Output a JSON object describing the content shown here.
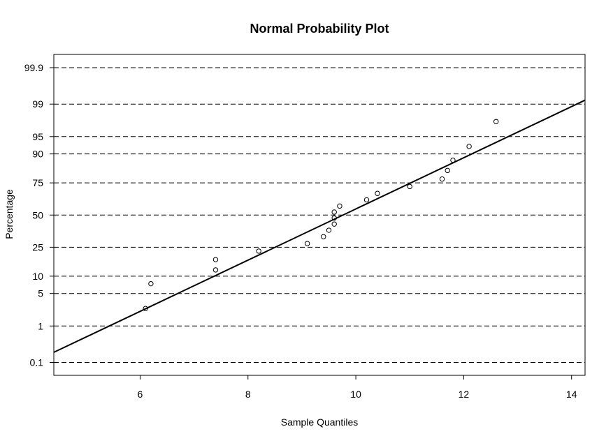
{
  "chart_data": {
    "type": "scatter",
    "title": "Normal Probability Plot",
    "xlabel": "Sample Quantiles",
    "ylabel": "Percentage",
    "xlim": [
      4.4,
      14.25
    ],
    "x_ticks": [
      6,
      8,
      10,
      12,
      14
    ],
    "y_scale": "normal-probability",
    "y_ticks": [
      0.1,
      1,
      5,
      10,
      25,
      50,
      75,
      90,
      95,
      99,
      99.9
    ],
    "y_tick_labels": [
      "0.1",
      "1",
      "5",
      "10",
      "25",
      "50",
      "75",
      "90",
      "95",
      "99",
      "99.9"
    ],
    "grid": "horizontal dashed lines at y ticks",
    "series": [
      {
        "points": [
          {
            "x": 6.1,
            "y": 2.5
          },
          {
            "x": 6.2,
            "y": 7.5
          },
          {
            "x": 7.4,
            "y": 12.5
          },
          {
            "x": 7.4,
            "y": 17.5
          },
          {
            "x": 8.2,
            "y": 22.5
          },
          {
            "x": 9.1,
            "y": 27.5
          },
          {
            "x": 9.4,
            "y": 32.5
          },
          {
            "x": 9.5,
            "y": 37.5
          },
          {
            "x": 9.6,
            "y": 42.5
          },
          {
            "x": 9.6,
            "y": 47.5
          },
          {
            "x": 9.6,
            "y": 52.5
          },
          {
            "x": 9.7,
            "y": 57.5
          },
          {
            "x": 10.2,
            "y": 62.5
          },
          {
            "x": 10.4,
            "y": 67.5
          },
          {
            "x": 11.0,
            "y": 72.5
          },
          {
            "x": 11.6,
            "y": 77.5
          },
          {
            "x": 11.7,
            "y": 82.5
          },
          {
            "x": 11.8,
            "y": 87.5
          },
          {
            "x": 12.1,
            "y": 92.5
          },
          {
            "x": 12.6,
            "y": 97.5
          }
        ]
      }
    ],
    "fit_line": {
      "from": {
        "x": 4.4,
        "y": 0.2
      },
      "to": {
        "x": 14.25,
        "y": 99.2
      }
    }
  }
}
